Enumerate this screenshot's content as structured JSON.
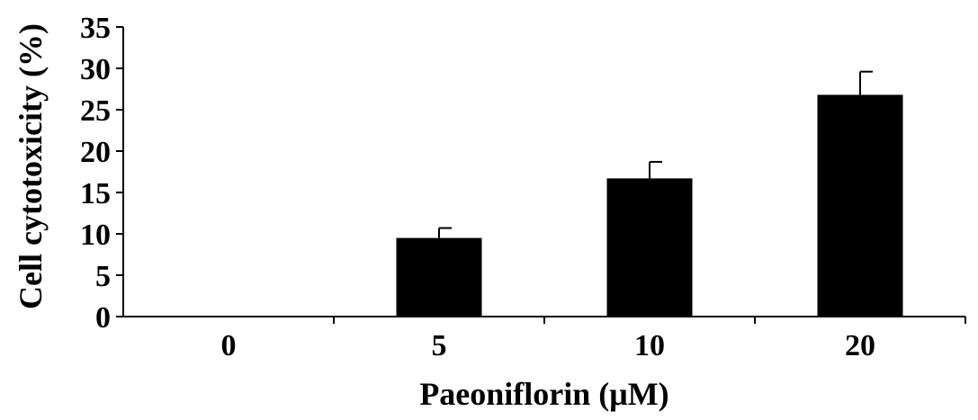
{
  "chart_data": {
    "type": "bar",
    "title": "",
    "xlabel": "Paeoniflorin (μM)",
    "ylabel": "Cell cytotoxicity (%)",
    "categories": [
      "0",
      "5",
      "10",
      "20"
    ],
    "values": [
      0,
      9.5,
      16.7,
      26.8
    ],
    "errors": [
      0,
      1.2,
      2.0,
      2.8
    ],
    "ylim": [
      0,
      35
    ],
    "yticks": [
      "0",
      "5",
      "10",
      "15",
      "20",
      "25",
      "30",
      "35"
    ],
    "grid": false,
    "legend": "none",
    "bar_color": "#000000",
    "axis_color": "#000000"
  }
}
